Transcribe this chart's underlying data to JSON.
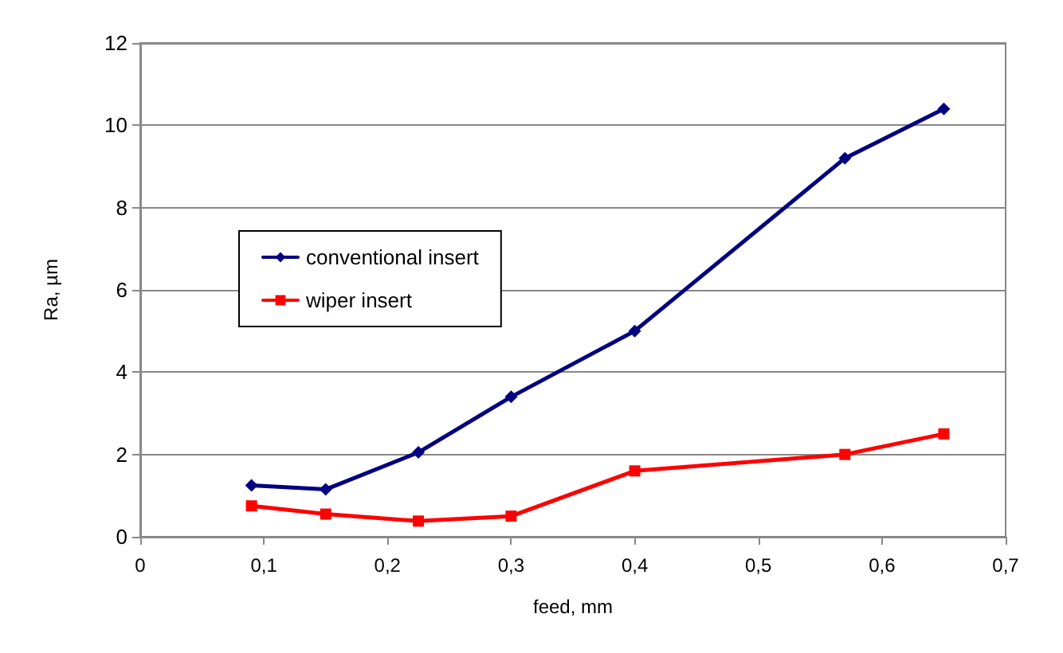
{
  "chart_data": {
    "type": "line",
    "xlabel": "feed, mm",
    "ylabel": "Ra, µm",
    "xlim": [
      0,
      0.7
    ],
    "xticks": [
      {
        "value": 0,
        "label": "0"
      },
      {
        "value": 0.1,
        "label": "0,1"
      },
      {
        "value": 0.2,
        "label": "0,2"
      },
      {
        "value": 0.3,
        "label": "0,3"
      },
      {
        "value": 0.4,
        "label": "0,4"
      },
      {
        "value": 0.5,
        "label": "0,5"
      },
      {
        "value": 0.6,
        "label": "0,6"
      },
      {
        "value": 0.7,
        "label": "0,7"
      }
    ],
    "ylim": [
      0,
      12
    ],
    "yticks": [
      0,
      2,
      4,
      6,
      8,
      10,
      12
    ],
    "grid": "y",
    "legend": "left",
    "series": [
      {
        "name": "conventional insert",
        "color": "#000080",
        "marker": "diamond",
        "x": [
          0.09,
          0.15,
          0.225,
          0.3,
          0.4,
          0.57,
          0.65
        ],
        "values": [
          1.25,
          1.15,
          2.05,
          3.4,
          5.0,
          9.2,
          10.4
        ]
      },
      {
        "name": "wiper insert",
        "color": "#ff0000",
        "marker": "square",
        "x": [
          0.09,
          0.15,
          0.225,
          0.3,
          0.4,
          0.57,
          0.65
        ],
        "values": [
          0.75,
          0.55,
          0.38,
          0.5,
          1.6,
          2.0,
          2.5
        ]
      }
    ]
  }
}
